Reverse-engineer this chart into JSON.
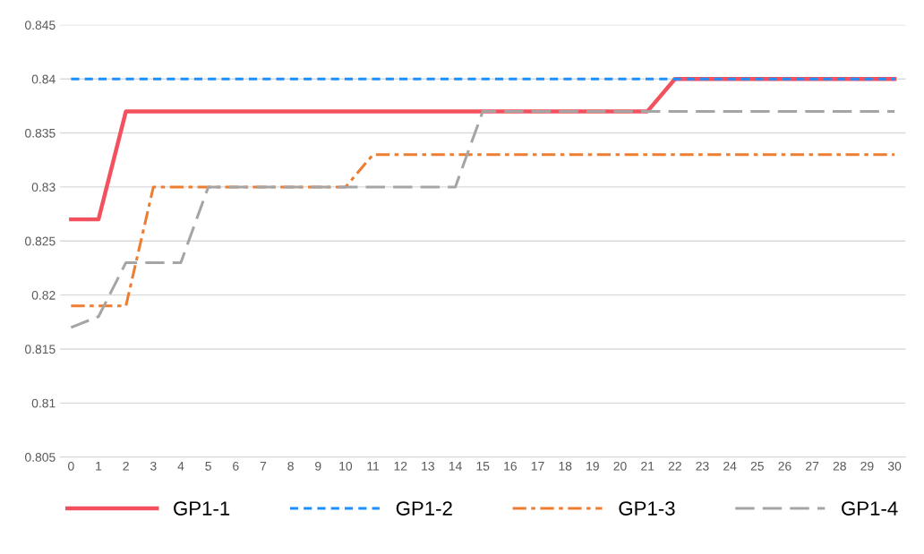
{
  "chart_data": {
    "type": "line",
    "categories": [
      "0",
      "1",
      "2",
      "3",
      "4",
      "5",
      "6",
      "7",
      "8",
      "9",
      "10",
      "11",
      "12",
      "13",
      "14",
      "15",
      "16",
      "17",
      "18",
      "19",
      "20",
      "21",
      "22",
      "23",
      "24",
      "25",
      "26",
      "27",
      "28",
      "29",
      "30"
    ],
    "series": [
      {
        "name": "GP1-1",
        "color": "#f4515e",
        "line_style": "solid",
        "values": [
          0.827,
          0.827,
          0.837,
          0.837,
          0.837,
          0.837,
          0.837,
          0.837,
          0.837,
          0.837,
          0.837,
          0.837,
          0.837,
          0.837,
          0.837,
          0.837,
          0.837,
          0.837,
          0.837,
          0.837,
          0.837,
          0.837,
          0.84,
          0.84,
          0.84,
          0.84,
          0.84,
          0.84,
          0.84,
          0.84,
          0.84
        ]
      },
      {
        "name": "GP1-2",
        "color": "#1e8fff",
        "line_style": "dashed",
        "values": [
          0.84,
          0.84,
          0.84,
          0.84,
          0.84,
          0.84,
          0.84,
          0.84,
          0.84,
          0.84,
          0.84,
          0.84,
          0.84,
          0.84,
          0.84,
          0.84,
          0.84,
          0.84,
          0.84,
          0.84,
          0.84,
          0.84,
          0.84,
          0.84,
          0.84,
          0.84,
          0.84,
          0.84,
          0.84,
          0.84,
          0.84
        ]
      },
      {
        "name": "GP1-3",
        "color": "#ed7d31",
        "line_style": "dashdot",
        "values": [
          0.819,
          0.819,
          0.819,
          0.83,
          0.83,
          0.83,
          0.83,
          0.83,
          0.83,
          0.83,
          0.83,
          0.833,
          0.833,
          0.833,
          0.833,
          0.833,
          0.833,
          0.833,
          0.833,
          0.833,
          0.833,
          0.833,
          0.833,
          0.833,
          0.833,
          0.833,
          0.833,
          0.833,
          0.833,
          0.833,
          0.833
        ]
      },
      {
        "name": "GP1-4",
        "color": "#a5a5a5",
        "line_style": "long_dashed",
        "values": [
          0.817,
          0.818,
          0.823,
          0.823,
          0.823,
          0.83,
          0.83,
          0.83,
          0.83,
          0.83,
          0.83,
          0.83,
          0.83,
          0.83,
          0.83,
          0.837,
          0.837,
          0.837,
          0.837,
          0.837,
          0.837,
          0.837,
          0.837,
          0.837,
          0.837,
          0.837,
          0.837,
          0.837,
          0.837,
          0.837,
          0.837
        ]
      }
    ],
    "ylim": [
      0.805,
      0.845
    ],
    "yticks": [
      0.805,
      0.81,
      0.815,
      0.82,
      0.825,
      0.83,
      0.835,
      0.84,
      0.845
    ],
    "grid": "y",
    "legend": "bottom",
    "marker": "none"
  }
}
